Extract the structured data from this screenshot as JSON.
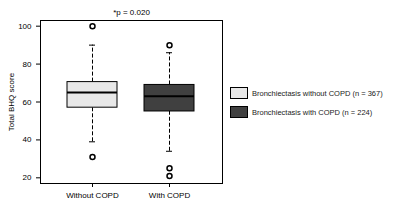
{
  "chart_data": {
    "type": "box",
    "annotation": "*p = 0.020",
    "y_label": "Total BHQ score",
    "categories": [
      "Without COPD",
      "With COPD"
    ],
    "ylim": [
      17,
      103
    ],
    "yticks": [
      20,
      40,
      60,
      80,
      100
    ],
    "line_style": "dashed",
    "legend": "right",
    "series": [
      {
        "name": "Bronchiectasis without COPD (n = 367)",
        "color": "#e8e8e8",
        "whisker_low": 39,
        "q1": 57,
        "median": 65,
        "q3": 70.5,
        "whisker_high": 90,
        "outliers": [
          100,
          31
        ]
      },
      {
        "name": "Bronchiectasis with COPD (n = 224)",
        "color": "#404040",
        "whisker_low": 34,
        "q1": 55,
        "median": 63,
        "q3": 69,
        "whisker_high": 86,
        "outliers": [
          90,
          25,
          21
        ]
      }
    ]
  }
}
